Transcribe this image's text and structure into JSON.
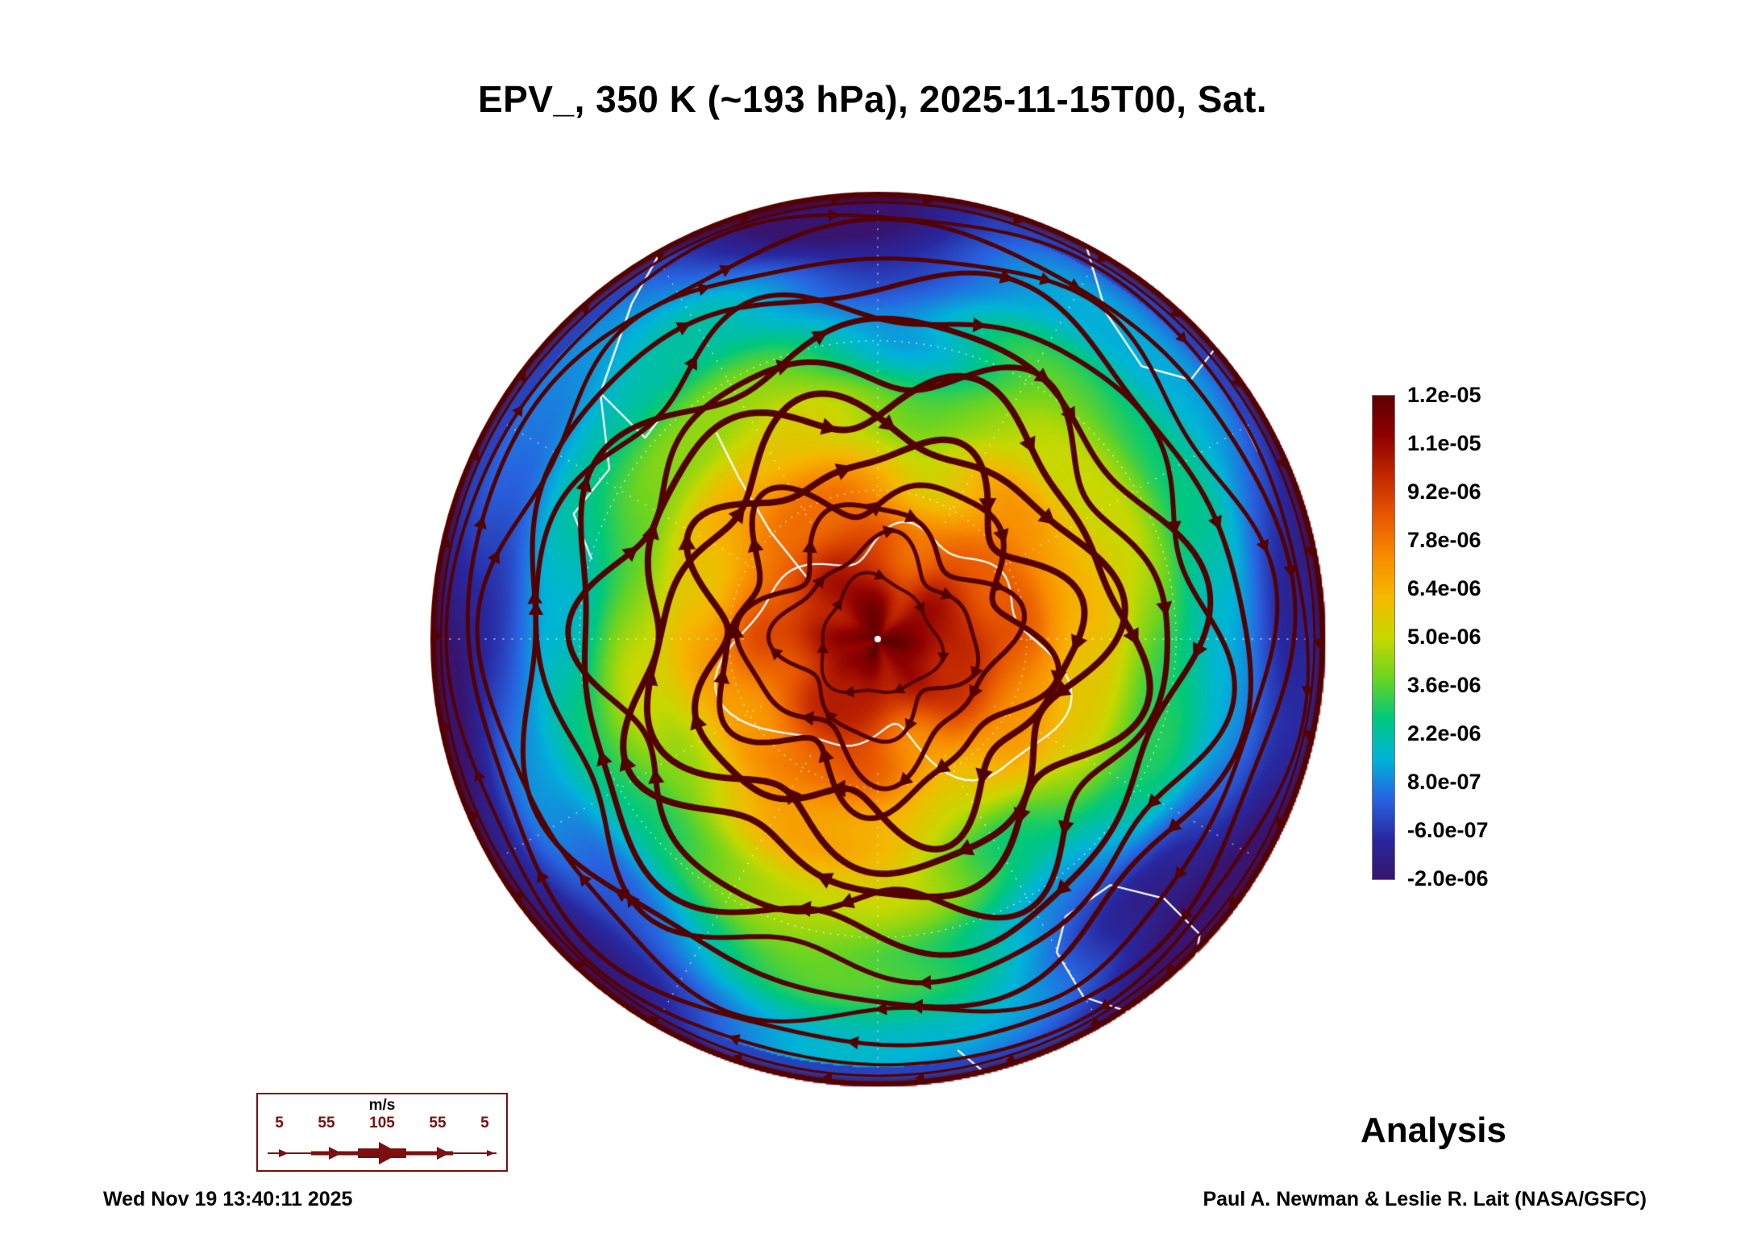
{
  "title": "EPV_, 350 K (~193 hPa), 2025-11-15T00, Sat.",
  "analysis_label": "Analysis",
  "footer": {
    "timestamp": "Wed Nov 19 13:40:11 2025",
    "credit": "Paul A. Newman & Leslie R. Lait (NASA/GSFC)"
  },
  "wind_legend": {
    "unit": "m/s",
    "tick_values": [
      "5",
      "55",
      "105",
      "55",
      "5"
    ]
  },
  "colorbar": {
    "labels": [
      "1.2e-05",
      "1.1e-05",
      "9.2e-06",
      "7.8e-06",
      "6.4e-06",
      "5.0e-06",
      "3.6e-06",
      "2.2e-06",
      "8.0e-07",
      "-6.0e-07",
      "-2.0e-06"
    ],
    "colors_top_to_bottom": [
      "#5c0000",
      "#8f0000",
      "#c22800",
      "#e85800",
      "#f88c00",
      "#f4b800",
      "#c8d800",
      "#6cd420",
      "#00c87c",
      "#00b4d8",
      "#2864e0",
      "#2828a0",
      "#38146e"
    ],
    "streamline_color": "#530000",
    "coastline_color": "#ffffff"
  },
  "chart_data": {
    "type": "heatmap",
    "title": "EPV_, 350 K (~193 hPa), 2025-11-15T00, Sat.",
    "field": "EPV_",
    "level": "350 K (~193 hPa)",
    "valid_time": "2025-11-15T00",
    "day_of_week": "Sat.",
    "projection": "south polar stereographic",
    "colorbar_ticks": [
      1.2e-05,
      1.1e-05,
      9.2e-06,
      7.8e-06,
      6.4e-06,
      5e-06,
      3.6e-06,
      2.2e-06,
      8e-07,
      -6e-07,
      -2e-06
    ],
    "colorbar_range": [
      -2e-06,
      1.2e-05
    ],
    "overlay": "wind streamlines with arrowheads, speed scale 5 to 105 m/s",
    "wind_scale_mps": [
      5,
      55,
      105,
      55,
      5
    ],
    "mode": "Analysis",
    "description": "High EPV (dark red/orange) over the Antarctic polar vortex center, wavy green mid-latitude band, blue/purple low values toward the outer (equatorward) edge, dense dark-red streamlines circling the pole"
  }
}
